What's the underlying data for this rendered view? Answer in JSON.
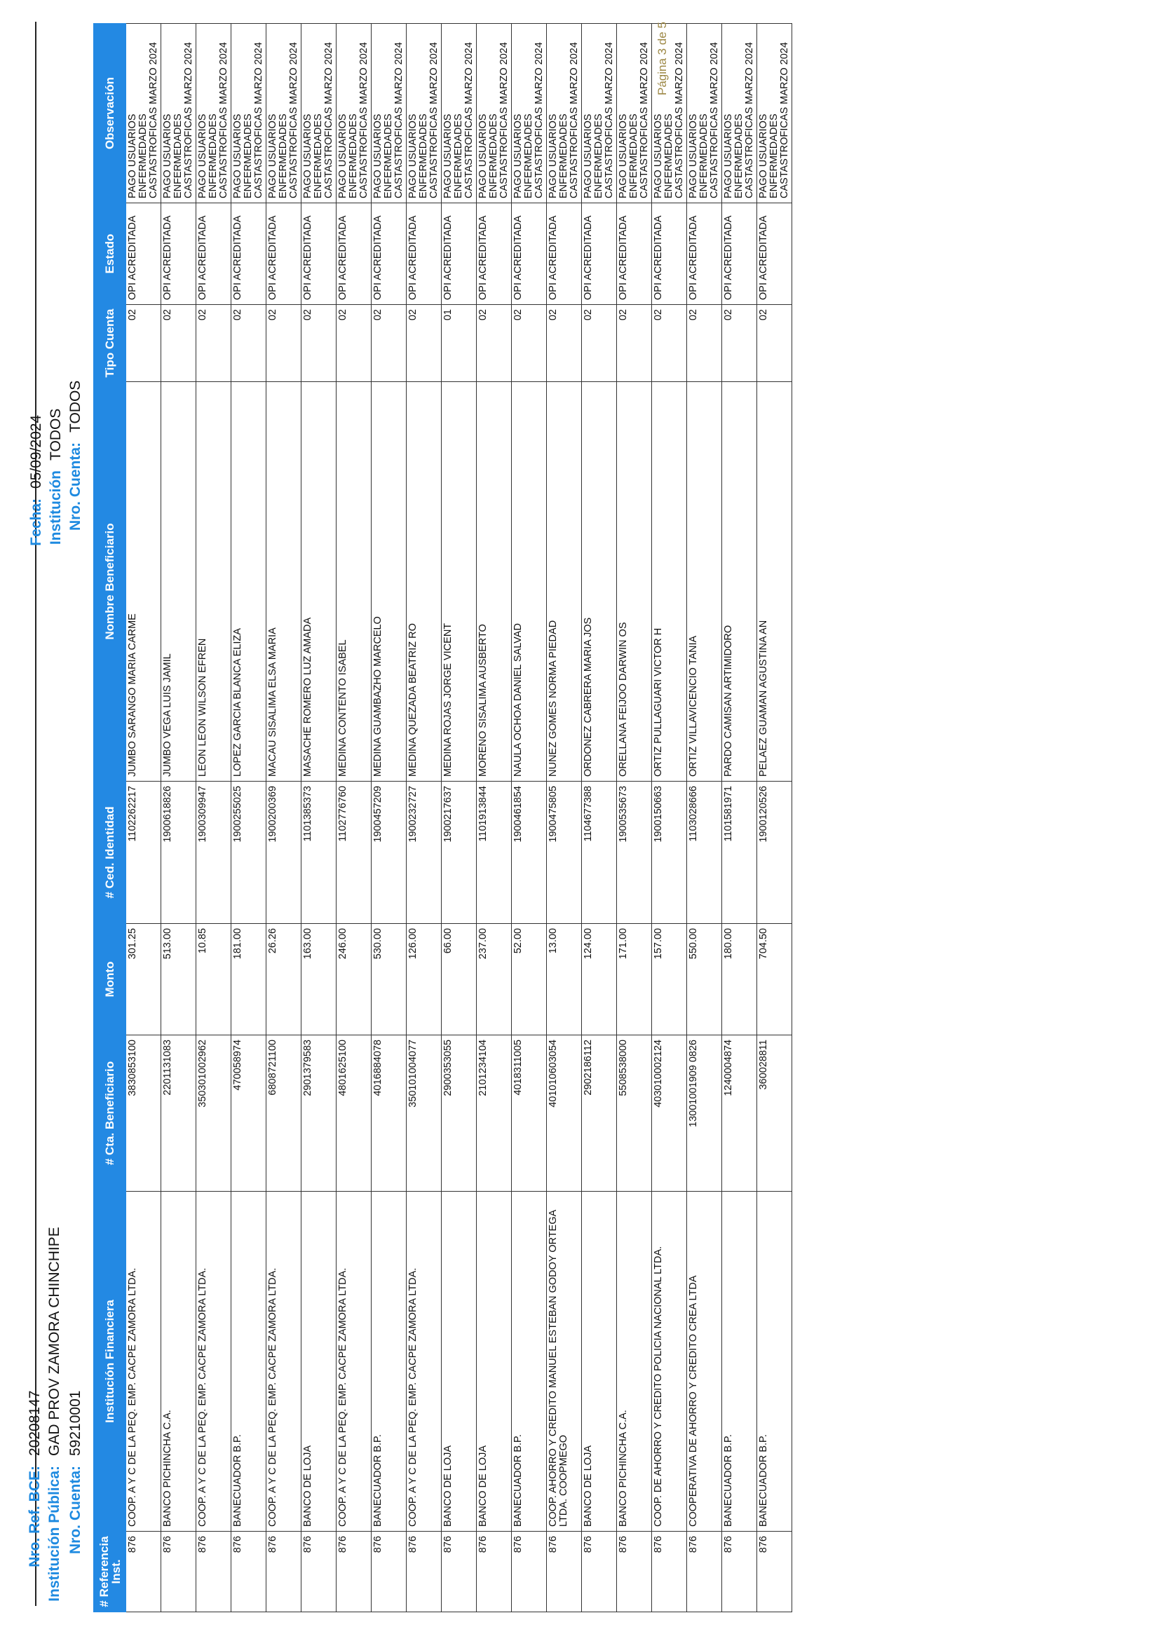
{
  "header": {
    "ref_label": "Nro. Ref. BCE:",
    "ref_value": "20208147",
    "inst_label": "Institución Pública:",
    "inst_value": "GAD PROV ZAMORA CHINCHIPE",
    "cuenta_label": "Nro. Cuenta:",
    "cuenta_value": "59210001",
    "fecha_label": "Fecha:",
    "fecha_value": "05/09/2024",
    "filtro_inst_label": "Institución",
    "filtro_inst_value": "TODOS",
    "filtro_cuenta_label": "Nro. Cuenta:",
    "filtro_cuenta_value": "TODOS"
  },
  "table": {
    "columns": [
      "# Referencia Inst.",
      "Institución Financiera",
      "# Cta. Beneficiario",
      "Monto",
      "# Ced. Identidad",
      "Nombre Beneficiario",
      "Tipo Cuenta",
      "Estado",
      "Observación"
    ],
    "rows": [
      [
        "876",
        "COOP.  A Y C DE LA PEQ. EMP. CACPE ZAMORA LTDA.",
        "3830853100",
        "301.25",
        "1102262217",
        "JUMBO SARANGO MARIA CARME",
        "02",
        "OPI ACREDITADA",
        "PAGO USUARIOS ENFERMEDADES CASTASTROFICAS MARZO 2024"
      ],
      [
        "876",
        "BANCO PICHINCHA C.A.",
        "2201131083",
        "513.00",
        "1900618826",
        "JUMBO VEGA LUIS JAMIL",
        "02",
        "OPI ACREDITADA",
        "PAGO USUARIOS ENFERMEDADES CASTASTROFICAS MARZO 2024"
      ],
      [
        "876",
        "COOP.  A Y C DE LA PEQ. EMP. CACPE ZAMORA LTDA.",
        "350301002962",
        "10.85",
        "1900309947",
        "LEON LEON WILSON EFREN",
        "02",
        "OPI ACREDITADA",
        "PAGO USUARIOS ENFERMEDADES CASTASTROFICAS MARZO 2024"
      ],
      [
        "876",
        "BANECUADOR B.P.",
        "470058974",
        "181.00",
        "1900255025",
        "LOPEZ GARCIA BLANCA ELIZA",
        "02",
        "OPI ACREDITADA",
        "PAGO USUARIOS ENFERMEDADES CASTASTROFICAS MARZO 2024"
      ],
      [
        "876",
        "COOP.  A Y C DE LA PEQ. EMP. CACPE ZAMORA LTDA.",
        "6808721100",
        "26.26",
        "1900200369",
        "MACAU SISALIMA ELSA MARIA",
        "02",
        "OPI ACREDITADA",
        "PAGO USUARIOS ENFERMEDADES CASTASTROFICAS MARZO 2024"
      ],
      [
        "876",
        "BANCO DE LOJA",
        "2901379583",
        "163.00",
        "1101385373",
        "MASACHE ROMERO LUZ AMADA",
        "02",
        "OPI ACREDITADA",
        "PAGO USUARIOS ENFERMEDADES CASTASTROFICAS MARZO 2024"
      ],
      [
        "876",
        "COOP.  A Y C DE LA PEQ. EMP. CACPE ZAMORA LTDA.",
        "4801625100",
        "246.00",
        "1102776760",
        "MEDINA CONTENTO ISABEL",
        "02",
        "OPI ACREDITADA",
        "PAGO USUARIOS ENFERMEDADES CASTASTROFICAS MARZO 2024"
      ],
      [
        "876",
        "BANECUADOR B.P.",
        "4016884078",
        "530.00",
        "1900457209",
        "MEDINA GUAMBAZHO MARCELO",
        "02",
        "OPI ACREDITADA",
        "PAGO USUARIOS ENFERMEDADES CASTASTROFICAS MARZO 2024"
      ],
      [
        "876",
        "COOP.  A Y C DE LA PEQ. EMP. CACPE ZAMORA LTDA.",
        "350101004077",
        "126.00",
        "1900232727",
        "MEDINA QUEZADA BEATRIZ RO",
        "02",
        "OPI ACREDITADA",
        "PAGO USUARIOS ENFERMEDADES CASTASTROFICAS MARZO 2024"
      ],
      [
        "876",
        "BANCO DE LOJA",
        "2900353055",
        "66.00",
        "1900217637",
        "MEDINA ROJAS JORGE VICENT",
        "01",
        "OPI ACREDITADA",
        "PAGO USUARIOS ENFERMEDADES CASTASTROFICAS MARZO 2024"
      ],
      [
        "876",
        "BANCO DE LOJA",
        "2101234104",
        "237.00",
        "1101913844",
        "MORENO SISALIMA AUSBERTO",
        "02",
        "OPI ACREDITADA",
        "PAGO USUARIOS ENFERMEDADES CASTASTROFICAS MARZO 2024"
      ],
      [
        "876",
        "BANECUADOR B.P.",
        "4018311005",
        "52.00",
        "1900461854",
        "NAULA OCHOA DANIEL SALVAD",
        "02",
        "OPI ACREDITADA",
        "PAGO USUARIOS ENFERMEDADES CASTASTROFICAS MARZO 2024"
      ],
      [
        "876",
        "COOP. AHORRO Y CREDITO MANUEL ESTEBAN GODOY ORTEGA LTDA. COOPMEGO",
        "401010603054",
        "13.00",
        "1900475805",
        "NUNEZ GOMES NORMA PIEDAD",
        "02",
        "OPI ACREDITADA",
        "PAGO USUARIOS ENFERMEDADES CASTASTROFICAS MARZO 2024"
      ],
      [
        "876",
        "BANCO DE LOJA",
        "2902186112",
        "124.00",
        "1104677388",
        "ORDONEZ CABRERA MARIA JOS",
        "02",
        "OPI ACREDITADA",
        "PAGO USUARIOS ENFERMEDADES CASTASTROFICAS MARZO 2024"
      ],
      [
        "876",
        "BANCO PICHINCHA C.A.",
        "5508538000",
        "171.00",
        "1900535673",
        "ORELLANA FEIJOO DARWIN OS",
        "02",
        "OPI ACREDITADA",
        "PAGO USUARIOS ENFERMEDADES CASTASTROFICAS MARZO 2024"
      ],
      [
        "876",
        "COOP. DE AHORRO Y CREDITO POLICIA NACIONAL LTDA.",
        "403010002124",
        "157.00",
        "1900150663",
        "ORTIZ PULLAGUARI VICTOR H",
        "02",
        "OPI ACREDITADA",
        "PAGO USUARIOS ENFERMEDADES CASTASTROFICAS MARZO 2024"
      ],
      [
        "876",
        "COOPERATIVA DE AHORRO Y CREDITO CREA LTDA",
        "13001001909 0826",
        "550.00",
        "1103028666",
        "ORTIZ VILLAVICENCIO TANIA",
        "02",
        "OPI ACREDITADA",
        "PAGO USUARIOS ENFERMEDADES CASTASTROFICAS MARZO 2024"
      ],
      [
        "876",
        "BANECUADOR B.P.",
        "1240004874",
        "180.00",
        "1101581971",
        "PARDO CAMISAN ARTIMIDORO",
        "02",
        "OPI ACREDITADA",
        "PAGO USUARIOS ENFERMEDADES CASTASTROFICAS MARZO 2024"
      ],
      [
        "876",
        "BANECUADOR B.P.",
        "360028811",
        "704.50",
        "1900120526",
        "PELAEZ GUAMAN AGUSTINA AN",
        "02",
        "OPI ACREDITADA",
        "PAGO USUARIOS ENFERMEDADES CASTASTROFICAS MARZO 2024"
      ]
    ]
  },
  "footer": {
    "page": "Página 3 de 5"
  },
  "colors": {
    "header_bg": "#2389e3",
    "label": "#1e8ae0",
    "page_number": "#9c8744"
  }
}
